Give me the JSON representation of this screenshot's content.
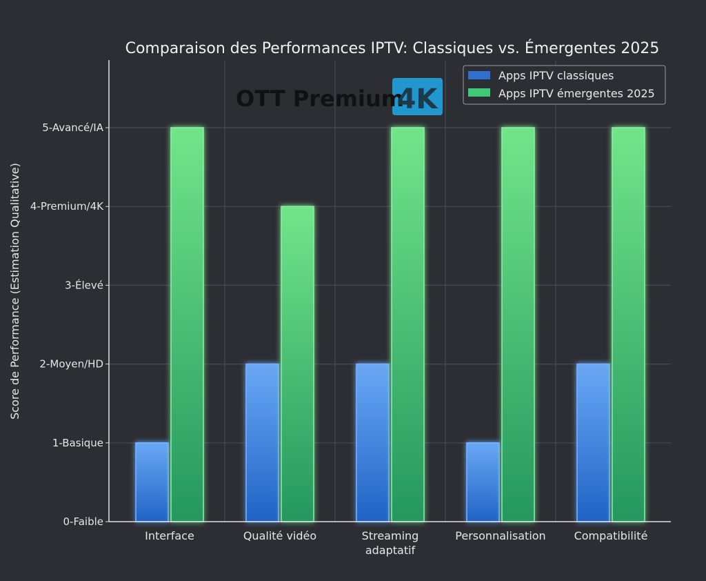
{
  "chart_data": {
    "type": "bar",
    "title": "Comparaison des Performances IPTV: Classiques vs. Émergentes 2025",
    "xlabel": "",
    "ylabel": "Score de Performance (Estimation Qualitative)",
    "categories": [
      "Interface",
      "Qualité vidéo",
      "Streaming adaptatif",
      "Personnalisation",
      "Compatibilité"
    ],
    "category_lines": [
      [
        "Interface"
      ],
      [
        "Qualité vidéo"
      ],
      [
        "Streaming",
        "adaptatif"
      ],
      [
        "Personnalisation"
      ],
      [
        "Compatibilité"
      ]
    ],
    "yticks": [
      0,
      1,
      2,
      3,
      4,
      5
    ],
    "ytick_labels": [
      "0-Faible",
      "1-Basique",
      "2-Moyen/HD",
      "3-Élevé",
      "4-Premium/4K",
      "5-Avancé/IA"
    ],
    "ylim": [
      0,
      5.86
    ],
    "grid": true,
    "legend_position": "top-right",
    "series": [
      {
        "name": "Apps IPTV classiques",
        "values": [
          1,
          2,
          2,
          1,
          2
        ],
        "color": "#3b7fdc"
      },
      {
        "name": "Apps IPTV émergentes 2025",
        "values": [
          5,
          4,
          5,
          5,
          5
        ],
        "color": "#3ec878"
      }
    ]
  },
  "watermark": {
    "text": "OTT Premium",
    "badge": "4K",
    "badge_color": "#1fa3e0"
  }
}
